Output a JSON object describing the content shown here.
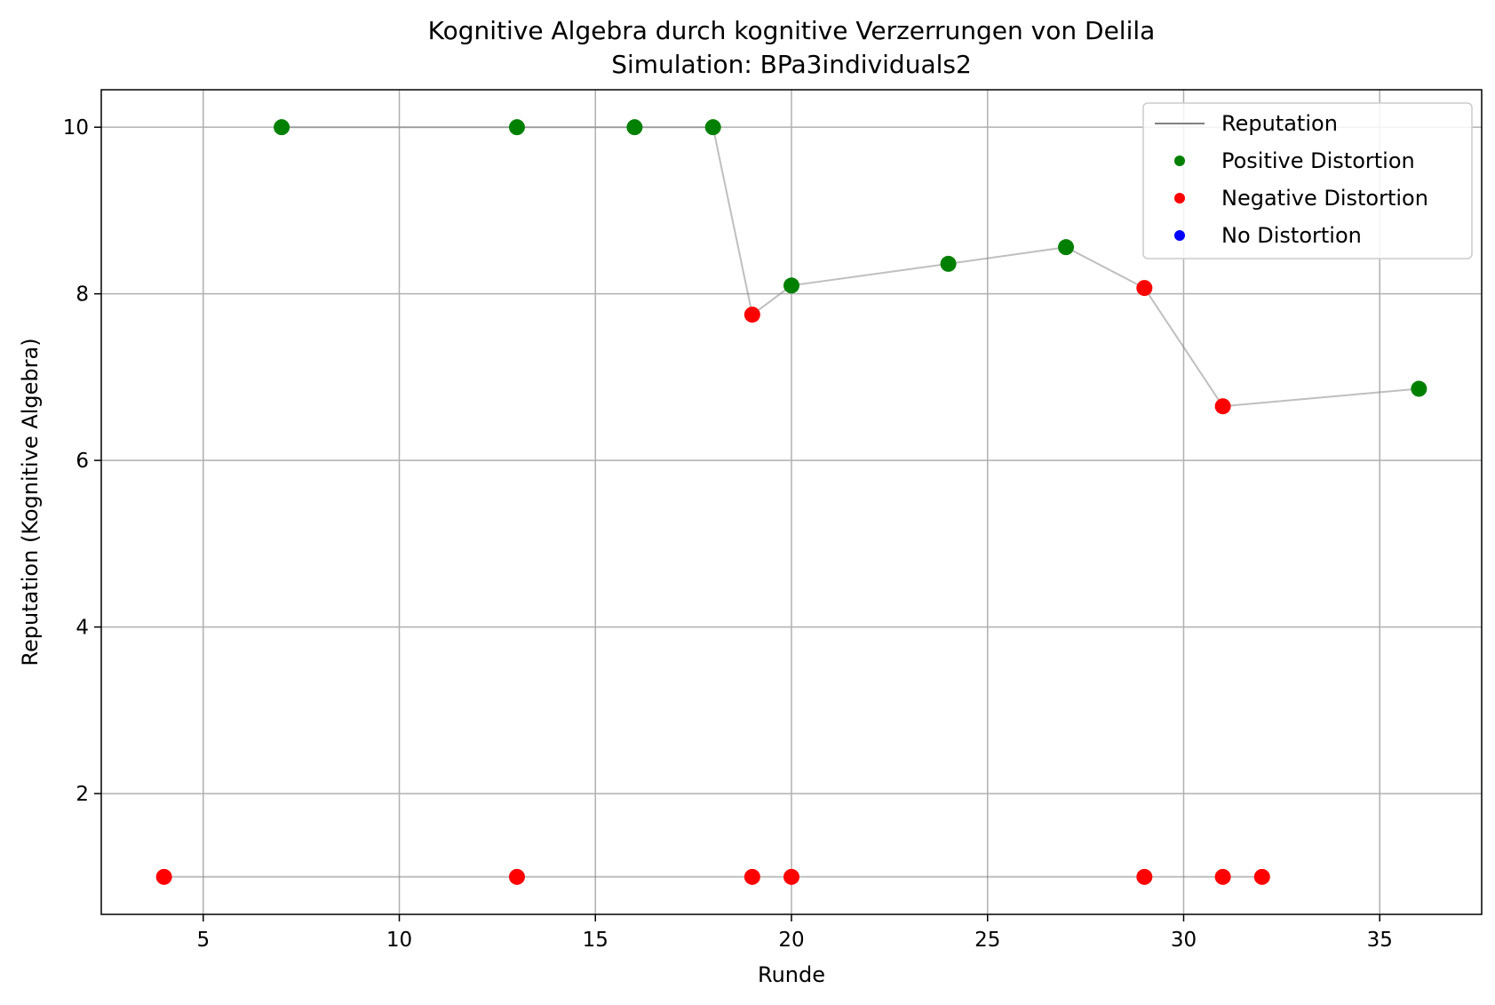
{
  "chart_data": {
    "type": "line",
    "title": "Kognitive Algebra durch kognitive Verzerrungen von Delila",
    "subtitle": "Simulation: BPa3individuals2",
    "xlabel": "Runde",
    "ylabel": "Reputation (Kognitive Algebra)",
    "xlim": [
      2.4,
      37.6
    ],
    "ylim": [
      0.55,
      10.45
    ],
    "xticks": [
      5,
      10,
      15,
      20,
      25,
      30,
      35
    ],
    "yticks": [
      2,
      4,
      6,
      8,
      10
    ],
    "grid": true,
    "legend_position": "top-right",
    "line_color": "#808080",
    "series": [
      {
        "points": [
          {
            "x": 7,
            "y": 10,
            "distortion": "positive"
          },
          {
            "x": 13,
            "y": 10,
            "distortion": "positive"
          },
          {
            "x": 16,
            "y": 10,
            "distortion": "positive"
          },
          {
            "x": 18,
            "y": 10,
            "distortion": "positive"
          },
          {
            "x": 19,
            "y": 7.75,
            "distortion": "negative"
          },
          {
            "x": 20,
            "y": 8.1,
            "distortion": "positive"
          },
          {
            "x": 24,
            "y": 8.36,
            "distortion": "positive"
          },
          {
            "x": 27,
            "y": 8.56,
            "distortion": "positive"
          },
          {
            "x": 29,
            "y": 8.07,
            "distortion": "negative"
          },
          {
            "x": 31,
            "y": 6.65,
            "distortion": "negative"
          },
          {
            "x": 36,
            "y": 6.86,
            "distortion": "positive"
          }
        ]
      },
      {
        "points": [
          {
            "x": 4,
            "y": 1,
            "distortion": "negative"
          },
          {
            "x": 13,
            "y": 1,
            "distortion": "negative"
          },
          {
            "x": 19,
            "y": 1,
            "distortion": "negative"
          },
          {
            "x": 20,
            "y": 1,
            "distortion": "negative"
          },
          {
            "x": 29,
            "y": 1,
            "distortion": "negative"
          },
          {
            "x": 31,
            "y": 1,
            "distortion": "negative"
          },
          {
            "x": 32,
            "y": 1,
            "distortion": "negative"
          }
        ]
      }
    ],
    "legend": [
      {
        "label": "Reputation",
        "kind": "line",
        "color": "#808080"
      },
      {
        "label": "Positive Distortion",
        "kind": "marker",
        "color": "#008000"
      },
      {
        "label": "Negative Distortion",
        "kind": "marker",
        "color": "#ff0000"
      },
      {
        "label": "No Distortion",
        "kind": "marker",
        "color": "#0000ff"
      }
    ],
    "colors": {
      "positive": "#008000",
      "negative": "#ff0000",
      "none": "#0000ff"
    }
  }
}
